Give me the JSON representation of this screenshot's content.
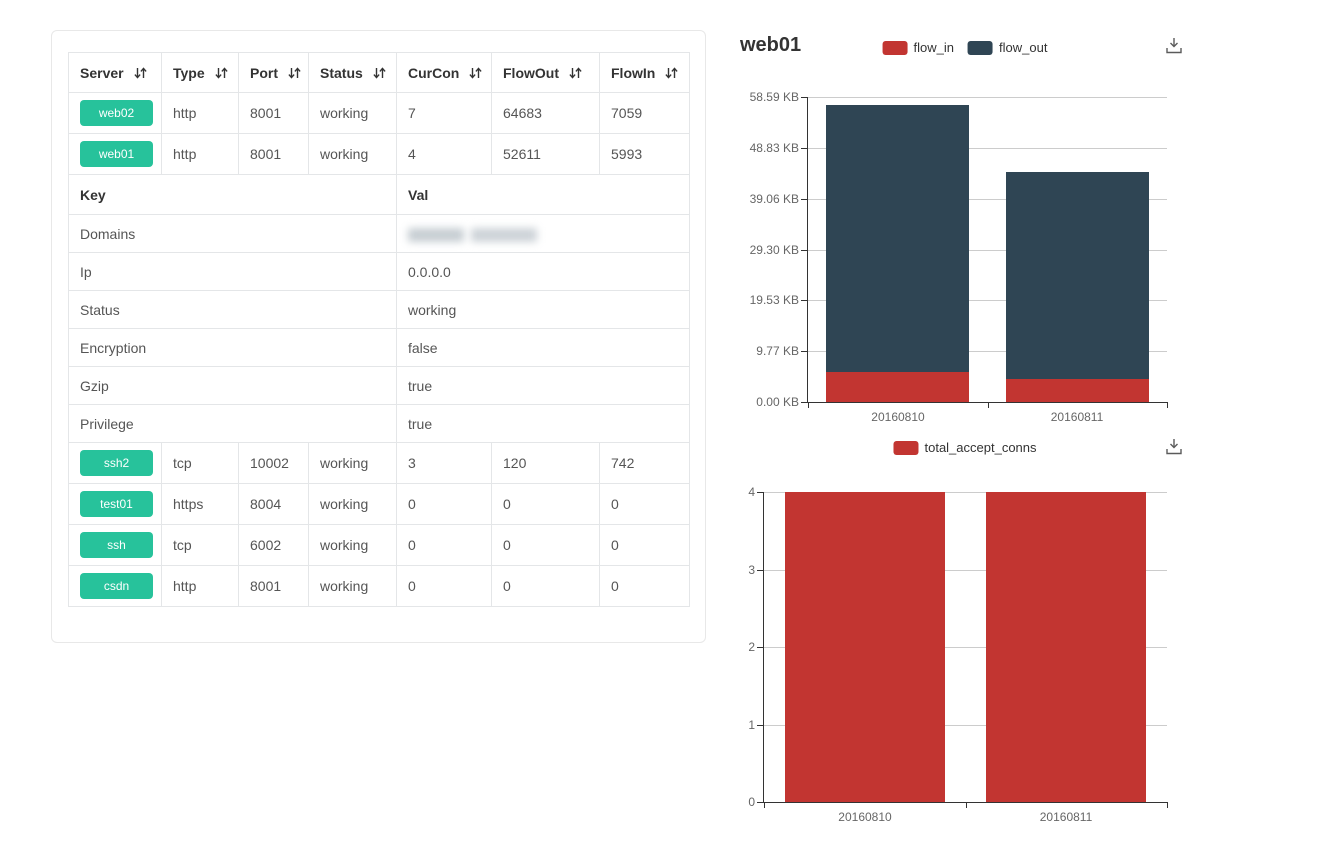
{
  "colors": {
    "accent_green": "#27c29b",
    "chart_red": "#c23531",
    "chart_dark": "#2f4554",
    "grid_line": "#cccccc",
    "axis_line": "#333333"
  },
  "icons": {
    "sort": "sort-arrows-down-up",
    "download": "download-to-tray"
  },
  "server_table": {
    "headers": [
      "Server",
      "Type",
      "Port",
      "Status",
      "CurCon",
      "FlowOut",
      "FlowIn"
    ],
    "rows_top": [
      {
        "server": "web02",
        "type": "http",
        "port": "8001",
        "status": "working",
        "curcon": "7",
        "flowout": "64683",
        "flowin": "7059"
      },
      {
        "server": "web01",
        "type": "http",
        "port": "8001",
        "status": "working",
        "curcon": "4",
        "flowout": "52611",
        "flowin": "5993"
      }
    ],
    "detail": {
      "key_header": "Key",
      "val_header": "Val",
      "rows": [
        {
          "key": "Domains",
          "value": "",
          "redacted": true
        },
        {
          "key": "Ip",
          "value": "0.0.0.0"
        },
        {
          "key": "Status",
          "value": "working"
        },
        {
          "key": "Encryption",
          "value": "false"
        },
        {
          "key": "Gzip",
          "value": "true"
        },
        {
          "key": "Privilege",
          "value": "true"
        }
      ]
    },
    "rows_bottom": [
      {
        "server": "ssh2",
        "type": "tcp",
        "port": "10002",
        "status": "working",
        "curcon": "3",
        "flowout": "120",
        "flowin": "742"
      },
      {
        "server": "test01",
        "type": "https",
        "port": "8004",
        "status": "working",
        "curcon": "0",
        "flowout": "0",
        "flowin": "0"
      },
      {
        "server": "ssh",
        "type": "tcp",
        "port": "6002",
        "status": "working",
        "curcon": "0",
        "flowout": "0",
        "flowin": "0"
      },
      {
        "server": "csdn",
        "type": "http",
        "port": "8001",
        "status": "working",
        "curcon": "0",
        "flowout": "0",
        "flowin": "0"
      }
    ]
  },
  "chart_data": [
    {
      "type": "bar",
      "stacked": true,
      "title": "web01",
      "categories": [
        "20160810",
        "20160811"
      ],
      "series": [
        {
          "name": "flow_in",
          "color": "#c23531",
          "values": [
            5.85,
            4.4
          ]
        },
        {
          "name": "flow_out",
          "color": "#2f4554",
          "values": [
            51.38,
            39.83
          ]
        }
      ],
      "unit": "KB",
      "ylim": [
        0,
        58.59
      ],
      "yticks": [
        "58.59 KB",
        "48.83 KB",
        "39.06 KB",
        "29.30 KB",
        "19.53 KB",
        "9.77 KB",
        "0.00 KB"
      ],
      "xlabel": "",
      "ylabel": "",
      "legend_position": "top-center",
      "grid": true
    },
    {
      "type": "bar",
      "stacked": false,
      "title": "",
      "categories": [
        "20160810",
        "20160811"
      ],
      "series": [
        {
          "name": "total_accept_conns",
          "color": "#c23531",
          "values": [
            4,
            4
          ]
        }
      ],
      "unit": "",
      "ylim": [
        0,
        4
      ],
      "yticks": [
        "4",
        "3",
        "2",
        "1",
        "0"
      ],
      "xlabel": "",
      "ylabel": "",
      "legend_position": "top-center",
      "grid": true
    }
  ]
}
